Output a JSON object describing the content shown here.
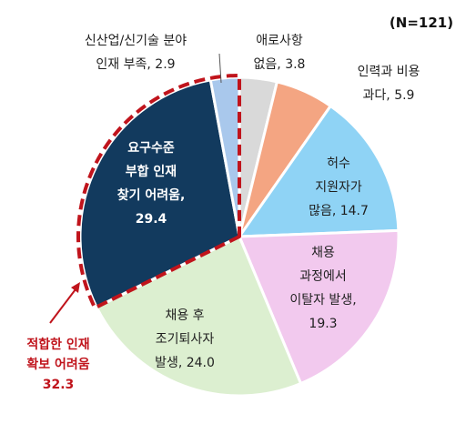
{
  "chart_data": {
    "type": "pie",
    "sample_note": "(N=121)",
    "slices": [
      {
        "label_lines": [
          "애로사항",
          "없음, 3.8"
        ],
        "value": 3.8,
        "color": "#d9d9d9"
      },
      {
        "label_lines": [
          "인력과 비용",
          "과다, 5.9"
        ],
        "value": 5.9,
        "color": "#f4a582"
      },
      {
        "label_lines": [
          "허수",
          "지원자가",
          "많음, 14.7"
        ],
        "value": 14.7,
        "color": "#8fd3f5"
      },
      {
        "label_lines": [
          "채용",
          "과정에서",
          "이탈자 발생,",
          "19.3"
        ],
        "value": 19.3,
        "color": "#f2c9ee"
      },
      {
        "label_lines": [
          "채용 후",
          "조기퇴사자",
          "발생, 24.0"
        ],
        "value": 24.0,
        "color": "#dcefd0"
      },
      {
        "label_lines": [
          "요구수준",
          "부합 인재",
          "찾기 어려움,",
          "29.4"
        ],
        "value": 29.4,
        "color": "#123a5e"
      },
      {
        "label_lines": [
          "신산업/신기술 분야",
          "인재 부족, 2.9"
        ],
        "value": 2.9,
        "color": "#a9c8ec"
      }
    ],
    "highlight": {
      "label_lines": [
        "적합한 인재",
        "확보 어려움",
        "32.3"
      ],
      "value": 32.3,
      "color": "#c0141c"
    }
  }
}
